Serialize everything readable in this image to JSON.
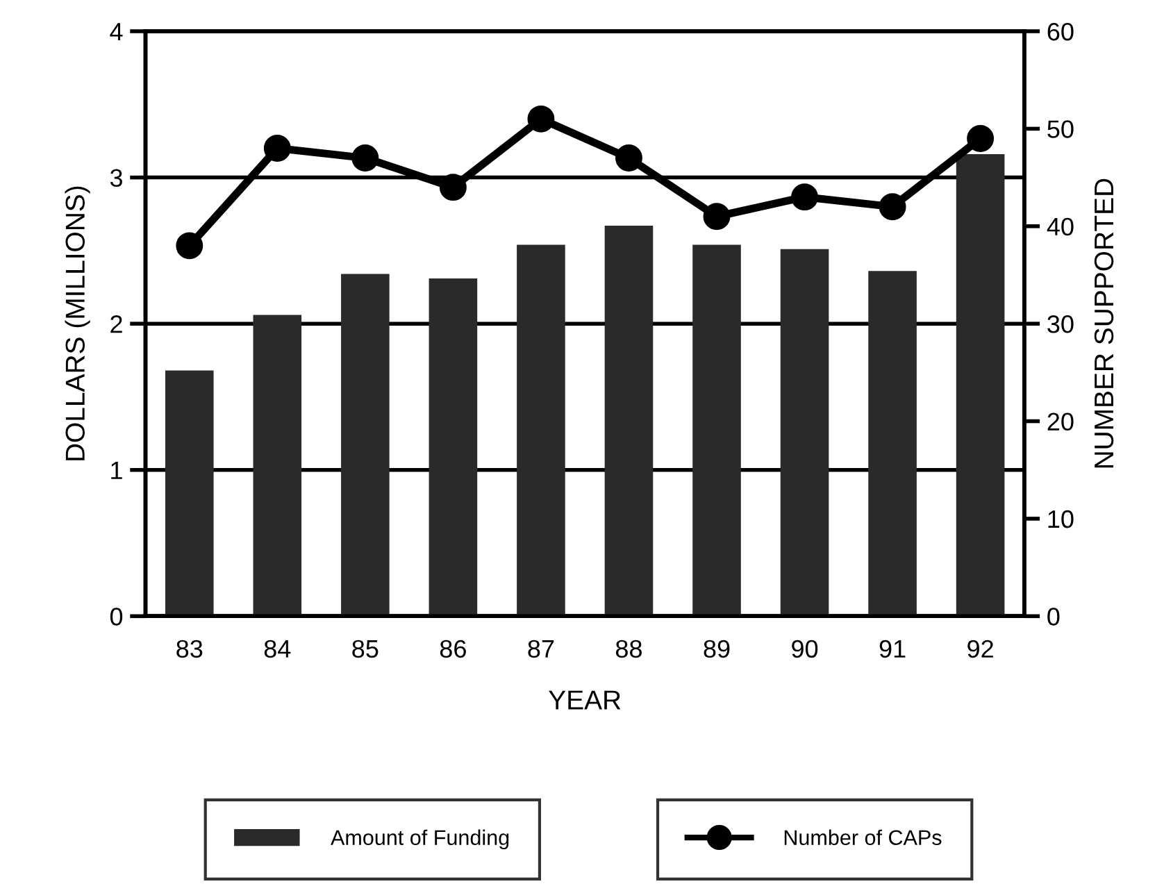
{
  "chart_data": {
    "type": "bar",
    "xlabel": "YEAR",
    "ylabel": "DOLLARS (MILLIONS)",
    "y2label": "NUMBER SUPPORTED",
    "categories": [
      "83",
      "84",
      "85",
      "86",
      "87",
      "88",
      "89",
      "90",
      "91",
      "92"
    ],
    "series": [
      {
        "name": "Amount of Funding",
        "color": "#2a2a2a",
        "values": [
          1.68,
          2.06,
          2.34,
          2.31,
          2.54,
          2.67,
          2.54,
          2.51,
          2.36,
          3.16
        ]
      },
      {
        "name": "Number of CAPs",
        "type": "line",
        "axis": "y2",
        "color": "#000000",
        "marker": "circle",
        "values": [
          38,
          48,
          47,
          44,
          51,
          47,
          41,
          43,
          42,
          49
        ]
      }
    ],
    "ylim": [
      0,
      4
    ],
    "yticks": [
      0,
      1,
      2,
      3,
      4
    ],
    "y2lim": [
      0,
      60
    ],
    "y2ticks": [
      0,
      10,
      20,
      30,
      40,
      50,
      60
    ],
    "grid": "y",
    "legend": "bottom"
  }
}
